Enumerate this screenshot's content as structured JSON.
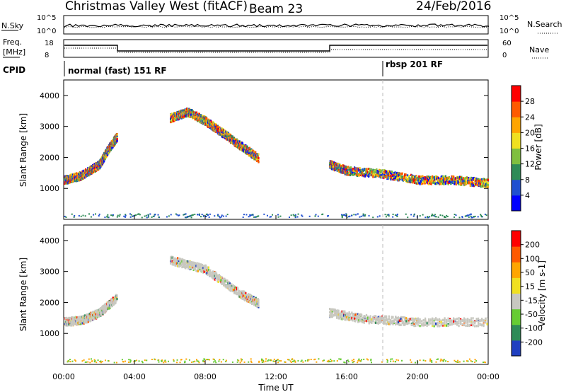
{
  "title": "Christmas Valley West (fitACF)",
  "beam_label": "Beam 23",
  "date": "24/Feb/2016",
  "top_panels": {
    "nsky": {
      "label": "N.Sky",
      "left_ticks": [
        "10^5",
        "10^0"
      ]
    },
    "nsearch": {
      "label": "N.Search",
      "right_ticks": [
        "10^5",
        "10^0"
      ]
    },
    "freq": {
      "label_line1": "Freq.",
      "label_line2": "[MHz]",
      "left_ticks": [
        "18",
        "8"
      ]
    },
    "nave": {
      "label": "Nave",
      "right_ticks": [
        "60",
        "0"
      ]
    },
    "cpid": {
      "label": "CPID",
      "modes": [
        "normal (fast) 151 RF",
        "rbsp 201 RF"
      ]
    }
  },
  "chart_data": [
    {
      "type": "heatmap",
      "panel": "power",
      "ylabel": "Slant Range [km]",
      "xlabel": "",
      "yticks": [
        1000,
        2000,
        3000,
        4000
      ],
      "ylim": [
        0,
        4500
      ],
      "xlim": [
        0,
        24
      ],
      "colorbar": {
        "label": "Power [dB]",
        "ticks": [
          "28",
          "24",
          "20",
          "16",
          "12",
          "8",
          "4"
        ],
        "colors": [
          "#0000ff",
          "#1f4fd0",
          "#2e8b57",
          "#7fbf3f",
          "#f0e020",
          "#ffa500",
          "#ff5a00",
          "#ff0000"
        ]
      },
      "features": [
        {
          "name": "main-echo-band",
          "x": [
            0.0,
            1.0,
            2.0,
            2.5,
            3.0
          ],
          "y": [
            1300,
            1450,
            1800,
            2300,
            2700
          ]
        },
        {
          "name": "midday-arc",
          "x": [
            6.0,
            7.0,
            8.0,
            9.0,
            10.0,
            11.0
          ],
          "y": [
            3300,
            3500,
            3200,
            2800,
            2400,
            2000
          ]
        },
        {
          "name": "afternoon-band",
          "x": [
            15.0,
            16.0,
            18.0,
            20.0,
            22.0,
            24.0
          ],
          "y": [
            1800,
            1600,
            1500,
            1300,
            1300,
            1200
          ]
        }
      ]
    },
    {
      "type": "heatmap",
      "panel": "velocity",
      "ylabel": "Slant Range [km]",
      "xlabel": "Time UT",
      "yticks": [
        1000,
        2000,
        3000,
        4000
      ],
      "ylim": [
        0,
        4500
      ],
      "xlim": [
        0,
        24
      ],
      "xticks": [
        "00:00",
        "04:00",
        "08:00",
        "12:00",
        "16:00",
        "20:00",
        "00:00"
      ],
      "colorbar": {
        "label": "Velocity [m s-1]",
        "ticks": [
          "200",
          "100",
          "50",
          "15",
          "-15",
          "-50",
          "-100",
          "-200"
        ],
        "colors": [
          "#1f3fc0",
          "#2e8b57",
          "#66cc33",
          "#c8c8c0",
          "#f0e020",
          "#ffa500",
          "#ff5a00",
          "#ff0000"
        ]
      },
      "features": [
        {
          "name": "ground-scatter-band",
          "x": [
            0.0,
            1.0,
            2.0,
            3.0
          ],
          "y": [
            1400,
            1450,
            1700,
            2200
          ]
        },
        {
          "name": "midday-arc",
          "x": [
            6.0,
            8.0,
            10.0,
            11.0
          ],
          "y": [
            3400,
            3100,
            2300,
            2000
          ]
        },
        {
          "name": "afternoon-band",
          "x": [
            15.0,
            17.0,
            20.0,
            24.0
          ],
          "y": [
            1700,
            1500,
            1400,
            1400
          ]
        }
      ]
    }
  ]
}
